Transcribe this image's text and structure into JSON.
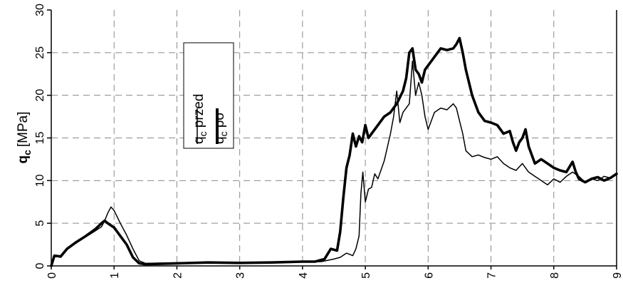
{
  "chart_data": {
    "type": "line",
    "title": "",
    "xlabel": "",
    "ylabel": {
      "main": "q",
      "sub": "c",
      "unit": "[MPa]"
    },
    "xlim": [
      0,
      9
    ],
    "ylim": [
      0,
      30
    ],
    "x_ticks": [
      "0",
      "1",
      "2",
      "3",
      "4",
      "5",
      "6",
      "7",
      "8",
      "9"
    ],
    "y_ticks": [
      "0",
      "5",
      "10",
      "15",
      "20",
      "25",
      "30"
    ],
    "grid": true,
    "legend_position": "top-center",
    "series": [
      {
        "name": {
          "main": "q",
          "sub": "c",
          "rest": " przed"
        },
        "line_width": "thin",
        "color": "#000000",
        "points": [
          [
            0,
            0
          ],
          [
            0.05,
            1.2
          ],
          [
            0.15,
            1.0
          ],
          [
            0.25,
            2.0
          ],
          [
            0.4,
            2.7
          ],
          [
            0.55,
            3.4
          ],
          [
            0.7,
            4.1
          ],
          [
            0.8,
            4.6
          ],
          [
            0.85,
            5.3
          ],
          [
            0.9,
            6.2
          ],
          [
            0.95,
            6.9
          ],
          [
            1.0,
            6.5
          ],
          [
            1.1,
            5.0
          ],
          [
            1.2,
            3.6
          ],
          [
            1.3,
            2.0
          ],
          [
            1.4,
            0.6
          ],
          [
            1.5,
            0.3
          ],
          [
            2.0,
            0.35
          ],
          [
            2.5,
            0.4
          ],
          [
            3.0,
            0.35
          ],
          [
            3.5,
            0.4
          ],
          [
            4.0,
            0.45
          ],
          [
            4.3,
            0.5
          ],
          [
            4.5,
            0.8
          ],
          [
            4.6,
            1.0
          ],
          [
            4.7,
            1.5
          ],
          [
            4.8,
            1.2
          ],
          [
            4.85,
            2.0
          ],
          [
            4.9,
            3.5
          ],
          [
            4.93,
            8.5
          ],
          [
            4.96,
            11.0
          ],
          [
            5.0,
            7.5
          ],
          [
            5.05,
            9.0
          ],
          [
            5.1,
            9.2
          ],
          [
            5.15,
            10.8
          ],
          [
            5.2,
            10.2
          ],
          [
            5.3,
            12.3
          ],
          [
            5.4,
            15.5
          ],
          [
            5.45,
            17.5
          ],
          [
            5.5,
            20.5
          ],
          [
            5.55,
            16.8
          ],
          [
            5.6,
            18.0
          ],
          [
            5.7,
            19.0
          ],
          [
            5.75,
            24.0
          ],
          [
            5.8,
            20.0
          ],
          [
            5.85,
            21.5
          ],
          [
            5.9,
            20.0
          ],
          [
            5.95,
            17.5
          ],
          [
            6.0,
            16.0
          ],
          [
            6.1,
            18.0
          ],
          [
            6.2,
            18.5
          ],
          [
            6.3,
            18.3
          ],
          [
            6.4,
            19.0
          ],
          [
            6.45,
            18.5
          ],
          [
            6.5,
            17.0
          ],
          [
            6.55,
            15.5
          ],
          [
            6.6,
            13.5
          ],
          [
            6.7,
            12.8
          ],
          [
            6.8,
            13.0
          ],
          [
            6.9,
            12.7
          ],
          [
            7.0,
            12.5
          ],
          [
            7.1,
            12.8
          ],
          [
            7.2,
            12.0
          ],
          [
            7.3,
            11.5
          ],
          [
            7.4,
            11.2
          ],
          [
            7.5,
            12.0
          ],
          [
            7.6,
            11.0
          ],
          [
            7.7,
            10.5
          ],
          [
            7.8,
            10.0
          ],
          [
            7.9,
            9.5
          ],
          [
            8.0,
            10.2
          ],
          [
            8.1,
            9.8
          ],
          [
            8.2,
            10.5
          ],
          [
            8.3,
            11.0
          ],
          [
            8.4,
            10.5
          ],
          [
            8.5,
            9.8
          ],
          [
            8.6,
            10.2
          ],
          [
            8.7,
            10.0
          ],
          [
            8.8,
            10.5
          ],
          [
            8.9,
            10.3
          ],
          [
            9.0,
            10.8
          ]
        ]
      },
      {
        "name": {
          "main": "q",
          "sub": "c",
          "rest": " po"
        },
        "line_width": "thick",
        "color": "#000000",
        "points": [
          [
            0,
            0
          ],
          [
            0.05,
            1.2
          ],
          [
            0.15,
            1.1
          ],
          [
            0.25,
            2.0
          ],
          [
            0.4,
            2.8
          ],
          [
            0.55,
            3.5
          ],
          [
            0.7,
            4.3
          ],
          [
            0.8,
            5.0
          ],
          [
            0.85,
            5.3
          ],
          [
            0.9,
            5.0
          ],
          [
            1.0,
            4.5
          ],
          [
            1.1,
            3.5
          ],
          [
            1.2,
            2.5
          ],
          [
            1.3,
            1.0
          ],
          [
            1.4,
            0.3
          ],
          [
            1.5,
            0.2
          ],
          [
            2.0,
            0.3
          ],
          [
            2.5,
            0.4
          ],
          [
            3.0,
            0.35
          ],
          [
            3.5,
            0.4
          ],
          [
            4.0,
            0.5
          ],
          [
            4.2,
            0.5
          ],
          [
            4.35,
            0.8
          ],
          [
            4.45,
            2.0
          ],
          [
            4.55,
            1.8
          ],
          [
            4.6,
            4.0
          ],
          [
            4.65,
            8.0
          ],
          [
            4.7,
            11.5
          ],
          [
            4.75,
            13.0
          ],
          [
            4.8,
            15.5
          ],
          [
            4.85,
            14.0
          ],
          [
            4.9,
            15.2
          ],
          [
            4.95,
            14.5
          ],
          [
            5.0,
            16.5
          ],
          [
            5.05,
            15.0
          ],
          [
            5.1,
            15.5
          ],
          [
            5.2,
            16.5
          ],
          [
            5.3,
            17.5
          ],
          [
            5.4,
            18.0
          ],
          [
            5.5,
            19.0
          ],
          [
            5.6,
            20.5
          ],
          [
            5.65,
            22.0
          ],
          [
            5.7,
            25.0
          ],
          [
            5.75,
            25.5
          ],
          [
            5.8,
            23.0
          ],
          [
            5.85,
            22.5
          ],
          [
            5.9,
            21.5
          ],
          [
            5.95,
            23.0
          ],
          [
            6.0,
            23.5
          ],
          [
            6.1,
            24.5
          ],
          [
            6.2,
            25.5
          ],
          [
            6.3,
            25.3
          ],
          [
            6.4,
            25.5
          ],
          [
            6.45,
            26.0
          ],
          [
            6.5,
            26.7
          ],
          [
            6.55,
            25.0
          ],
          [
            6.6,
            23.0
          ],
          [
            6.7,
            20.0
          ],
          [
            6.8,
            18.0
          ],
          [
            6.9,
            17.0
          ],
          [
            7.0,
            16.8
          ],
          [
            7.1,
            16.5
          ],
          [
            7.2,
            15.5
          ],
          [
            7.3,
            15.8
          ],
          [
            7.35,
            14.5
          ],
          [
            7.4,
            13.5
          ],
          [
            7.45,
            14.5
          ],
          [
            7.5,
            15.0
          ],
          [
            7.55,
            16.0
          ],
          [
            7.6,
            14.0
          ],
          [
            7.7,
            12.0
          ],
          [
            7.8,
            12.5
          ],
          [
            7.9,
            12.0
          ],
          [
            8.0,
            11.5
          ],
          [
            8.1,
            11.2
          ],
          [
            8.2,
            11.0
          ],
          [
            8.3,
            12.2
          ],
          [
            8.35,
            11.0
          ],
          [
            8.4,
            10.2
          ],
          [
            8.5,
            9.8
          ],
          [
            8.6,
            10.2
          ],
          [
            8.7,
            10.4
          ],
          [
            8.8,
            10.0
          ],
          [
            8.9,
            10.3
          ],
          [
            9.0,
            10.8
          ]
        ]
      }
    ]
  }
}
